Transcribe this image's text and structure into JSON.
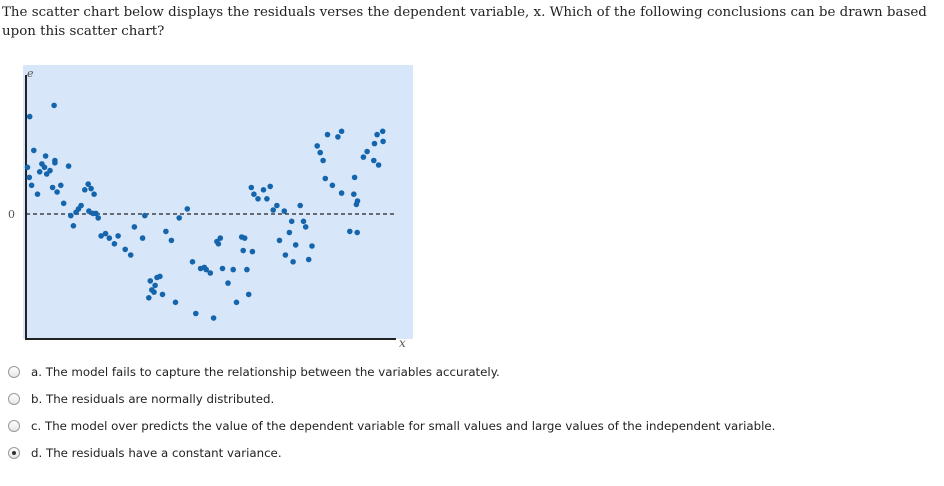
{
  "question": {
    "text": "The scatter chart below displays the residuals verses the dependent variable, x. Which of the following conclusions can be drawn based upon this scatter chart?"
  },
  "chart_data": {
    "type": "scatter",
    "title": "",
    "xlabel": "x",
    "ylabel": "e",
    "ytick_labels": [
      "0"
    ],
    "xlim": [
      0,
      100
    ],
    "ylim": [
      -10,
      10
    ],
    "grid": false,
    "zero_line": "dashed",
    "colors": {
      "background": "#d7e6f8",
      "point": "#1565ad",
      "axis": "#222222"
    },
    "x": [
      0.4,
      1.0,
      2.1,
      7.8,
      1.5,
      0.9,
      3.1,
      3.7,
      4.3,
      5.0,
      5.6,
      5.3,
      6.5,
      7.2,
      7.6,
      7.8,
      8.4,
      9.4,
      10.2,
      11.5,
      12.1,
      12.8,
      13.5,
      14.2,
      14.9,
      15.9,
      16.8,
      17.6,
      18.4,
      17.0,
      18.1,
      18.9,
      19.5,
      20.3,
      21.5,
      22.5,
      23.9,
      24.9,
      26.8,
      28.3,
      29.3,
      31.5,
      32.1,
      33.6,
      35.4,
      34.6,
      33.2,
      34.0,
      34.9,
      36.2,
      36.9,
      37.8,
      39.3,
      40.4,
      41.4,
      43.6,
      45.0,
      45.9,
      47.2,
      48.7,
      48.2,
      49.8,
      50.7,
      51.6,
      53.1,
      52.5,
      52.0,
      54.6,
      56.0,
      56.9,
      58.3,
      58.7,
      59.1,
      60.2,
      59.7,
      61.2,
      60.9,
      61.6,
      62.7,
      64.2,
      65.1,
      66.0,
      66.8,
      67.8,
      68.5,
      69.8,
      71.2,
      71.8,
      70.1,
      72.2,
      72.9,
      74.1,
      75.0,
      75.6,
      76.4,
      77.3,
      78.7,
      79.5,
      80.9,
      80.3,
      81.5,
      82.8,
      84.3,
      85.3,
      85.3
    ],
    "y": [
      4.2,
      8.7,
      5.7,
      4.8,
      2.6,
      3.3,
      1.8,
      3.8,
      4.5,
      4.2,
      3.6,
      5.2,
      3.9,
      2.4,
      9.7,
      4.6,
      2.0,
      2.6,
      1.0,
      4.3,
      -0.1,
      -1.0,
      0.2,
      0.5,
      0.8,
      2.2,
      2.7,
      2.3,
      1.8,
      0.3,
      0.1,
      0.1,
      -0.3,
      -1.9,
      -1.7,
      -2.1,
      -2.6,
      -1.9,
      -3.1,
      -3.6,
      -1.1,
      -2.1,
      -0.1,
      -5.9,
      -5.6,
      -6.9,
      -7.4,
      -6.7,
      -6.3,
      -5.5,
      -7.1,
      -1.5,
      -2.3,
      -7.8,
      -0.3,
      0.5,
      -4.2,
      -8.8,
      -4.8,
      -4.9,
      -4.7,
      -5.2,
      -9.2,
      -2.4,
      -4.8,
      -2.1,
      -2.6,
      -6.1,
      -4.9,
      -7.8,
      -2.0,
      -3.2,
      -2.1,
      -7.1,
      -4.9,
      -3.3,
      2.4,
      1.8,
      1.4,
      2.2,
      1.4,
      2.5,
      0.4,
      0.8,
      -2.3,
      0.3,
      -1.6,
      -0.6,
      -3.6,
      -4.2,
      -2.7,
      0.8,
      -0.6,
      -1.1,
      -4.0,
      -2.8,
      6.1,
      5.5,
      3.2,
      4.8,
      7.1,
      2.6,
      6.9,
      1.9,
      7.4
    ],
    "series": [
      {
        "x": [
          87.5,
          89.5,
          88.8,
          88.6,
          89.3,
          89.6,
          91.2,
          92.2,
          94.0,
          94.9,
          94.2,
          95.3,
          96.4,
          96.5
        ],
        "y": [
          -1.5,
          -1.6,
          3.3,
          1.8,
          0.9,
          1.2,
          5.1,
          5.6,
          4.8,
          7.1,
          6.3,
          4.4,
          7.4,
          6.5
        ]
      }
    ]
  },
  "options": [
    {
      "label": "a. The model fails to capture the relationship between the variables accurately.",
      "checked": false
    },
    {
      "label": "b. The residuals are normally distributed.",
      "checked": false
    },
    {
      "label": "c. The model over predicts the value of the dependent variable for small values and large values of the independent variable.",
      "checked": false
    },
    {
      "label": "d. The residuals have a constant variance.",
      "checked": true
    }
  ]
}
